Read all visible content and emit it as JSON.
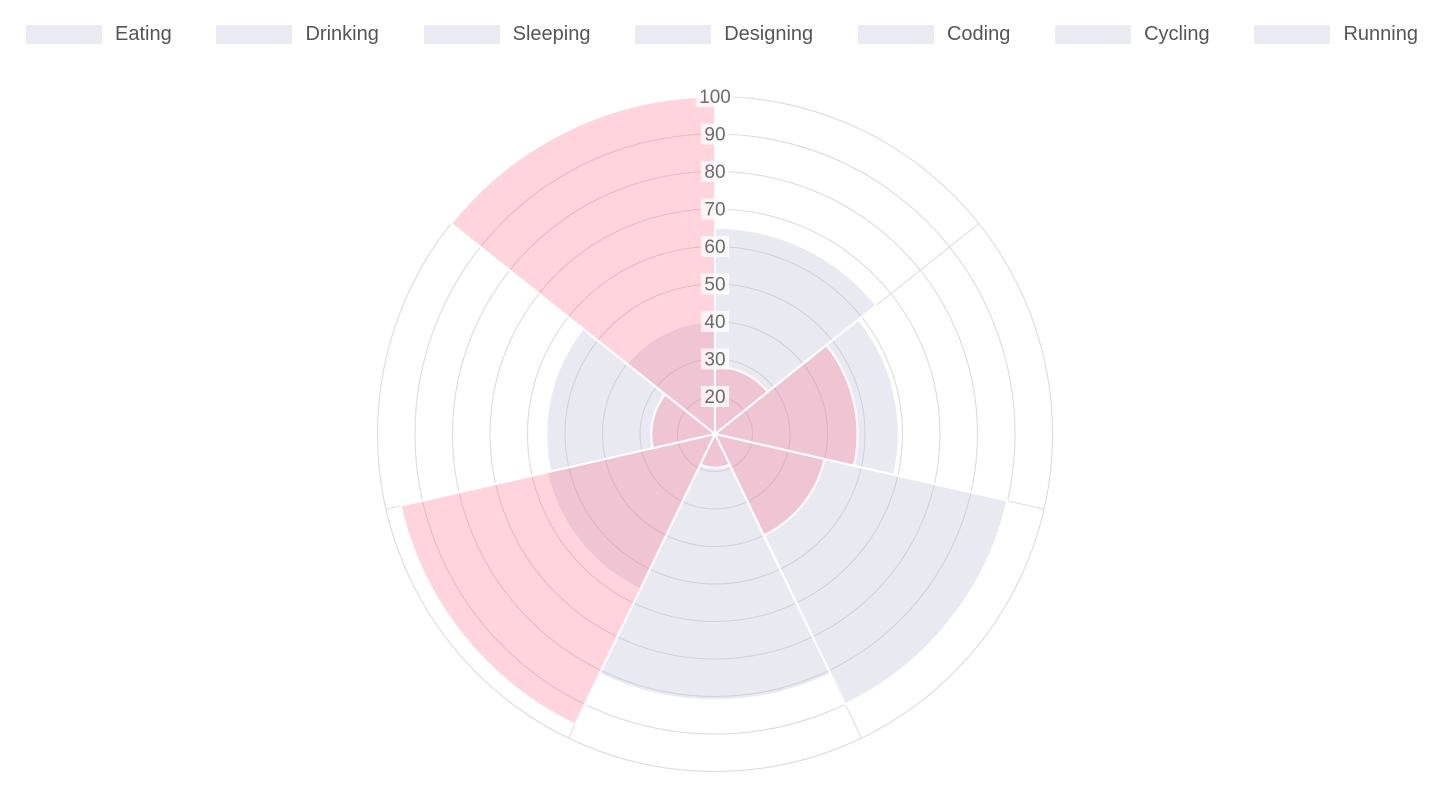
{
  "page": {
    "background": "#FFFFFF"
  },
  "legend": {
    "items": [
      "Eating",
      "Drinking",
      "Sleeping",
      "Designing",
      "Coding",
      "Cycling",
      "Running"
    ],
    "swatch_color": "#EAEAF3",
    "label_color": "#555555"
  },
  "chart_data": {
    "type": "polarArea",
    "categories": [
      "Eating",
      "Drinking",
      "Sleeping",
      "Designing",
      "Coding",
      "Cycling",
      "Running"
    ],
    "series": [
      {
        "color": "rgba(187,187,214,0.32)",
        "values": [
          65,
          59,
          90,
          81,
          56,
          55,
          40
        ]
      },
      {
        "color": "rgba(255,99,132,0.28)",
        "values": [
          28,
          48,
          40,
          19,
          96,
          27,
          100
        ]
      }
    ],
    "radial_axis": {
      "ticks": [
        20,
        30,
        40,
        50,
        60,
        70,
        80,
        90,
        100
      ],
      "range": [
        10,
        100
      ],
      "tick_color": "#6B6B6B",
      "tick_backdrop": "rgba(255,255,255,0.75)"
    },
    "grid": {
      "show": true,
      "circular": true,
      "color": "#DCDCDC"
    },
    "wedge_border_color": "#FFFFFF",
    "legend_position": "top",
    "start_angle_deg": -90,
    "direction": "clockwise"
  }
}
